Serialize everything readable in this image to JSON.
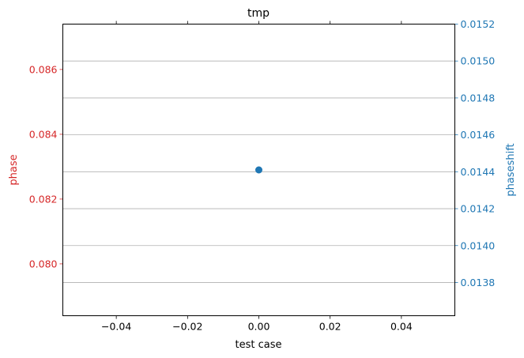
{
  "chart_data": {
    "type": "scatter",
    "title": "tmp",
    "xlabel": "test case",
    "ylabel_left": "phase",
    "ylabel_right": "phaseshift",
    "xlim": [
      -0.055,
      0.055
    ],
    "xticks": [
      -0.04,
      -0.02,
      0.0,
      0.02,
      0.04
    ],
    "xtick_labels": [
      "−0.04",
      "−0.02",
      "0.00",
      "0.02",
      "0.04"
    ],
    "top_xticks": true,
    "ylim_left": [
      0.0784,
      0.0874
    ],
    "yticks_left": [
      0.08,
      0.082,
      0.084,
      0.086
    ],
    "ytick_labels_left": [
      "0.080",
      "0.082",
      "0.084",
      "0.086"
    ],
    "ylim_right": [
      0.01362,
      0.0152
    ],
    "yticks_right": [
      0.0138,
      0.014,
      0.0142,
      0.0144,
      0.0146,
      0.0148,
      0.015,
      0.0152
    ],
    "ytick_labels_right": [
      "0.0138",
      "0.0140",
      "0.0142",
      "0.0144",
      "0.0146",
      "0.0148",
      "0.0150",
      "0.0152"
    ],
    "grid": "horizontal, right axis",
    "colors": {
      "left": "#d62728",
      "right": "#1f77b4",
      "grid": "#b0b0b0",
      "frame": "#000000"
    },
    "series": [
      {
        "axis": "right",
        "x": [
          0.0
        ],
        "y": [
          0.01441
        ]
      }
    ]
  }
}
